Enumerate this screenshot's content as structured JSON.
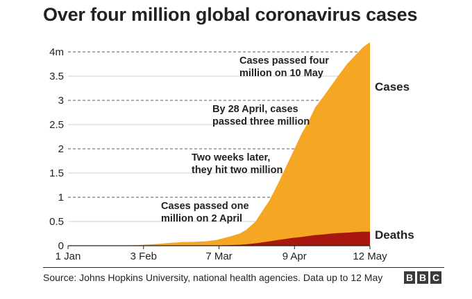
{
  "chart_data": {
    "type": "area",
    "title": "Over four million global coronavirus cases",
    "xlabel": "",
    "ylabel": "",
    "x_ticks": [
      "1 Jan",
      "3 Feb",
      "7 Mar",
      "9 Apr",
      "12 May"
    ],
    "y_ticks": [
      "0",
      "0.5",
      "1",
      "1.5",
      "2",
      "2.5",
      "3",
      "3.5",
      "4m"
    ],
    "ylim": [
      0,
      4.2
    ],
    "grid": "dashed lines at 1m, 2m, 3m, 4m",
    "x": [
      0,
      10,
      20,
      30,
      35,
      40,
      45,
      50,
      55,
      60,
      65,
      70,
      75,
      78,
      82,
      85,
      88,
      92,
      95,
      98,
      102,
      105,
      108,
      112,
      115,
      118,
      122,
      125,
      129,
      132
    ],
    "series": [
      {
        "name": "Cases",
        "color": "#f5a623",
        "values": [
          0,
          0,
          0.0003,
          0.01,
          0.025,
          0.04,
          0.06,
          0.075,
          0.08,
          0.09,
          0.12,
          0.18,
          0.25,
          0.33,
          0.5,
          0.72,
          0.93,
          1.3,
          1.6,
          1.9,
          2.3,
          2.55,
          2.85,
          3.1,
          3.3,
          3.5,
          3.75,
          3.9,
          4.1,
          4.2
        ]
      },
      {
        "name": "Deaths",
        "color": "#a8170f",
        "values": [
          0,
          0,
          0,
          0,
          0.0008,
          0.001,
          0.0016,
          0.002,
          0.0027,
          0.0035,
          0.006,
          0.011,
          0.02,
          0.03,
          0.05,
          0.07,
          0.09,
          0.12,
          0.14,
          0.16,
          0.18,
          0.2,
          0.22,
          0.235,
          0.25,
          0.26,
          0.27,
          0.28,
          0.29,
          0.29
        ]
      }
    ],
    "annotations": [
      {
        "line1": "Cases passed four",
        "line2": "million on 10 May"
      },
      {
        "line1": "By 28 April, cases",
        "line2": "passed three million"
      },
      {
        "line1": "Two weeks later,",
        "line2": "they hit two million"
      },
      {
        "line1": "Cases passed one",
        "line2": "million on 2 April"
      }
    ]
  },
  "footer": {
    "source": "Source: Johns Hopkins University, national health agencies. Data up to 12 May",
    "logo_letters": [
      "B",
      "B",
      "C"
    ]
  }
}
